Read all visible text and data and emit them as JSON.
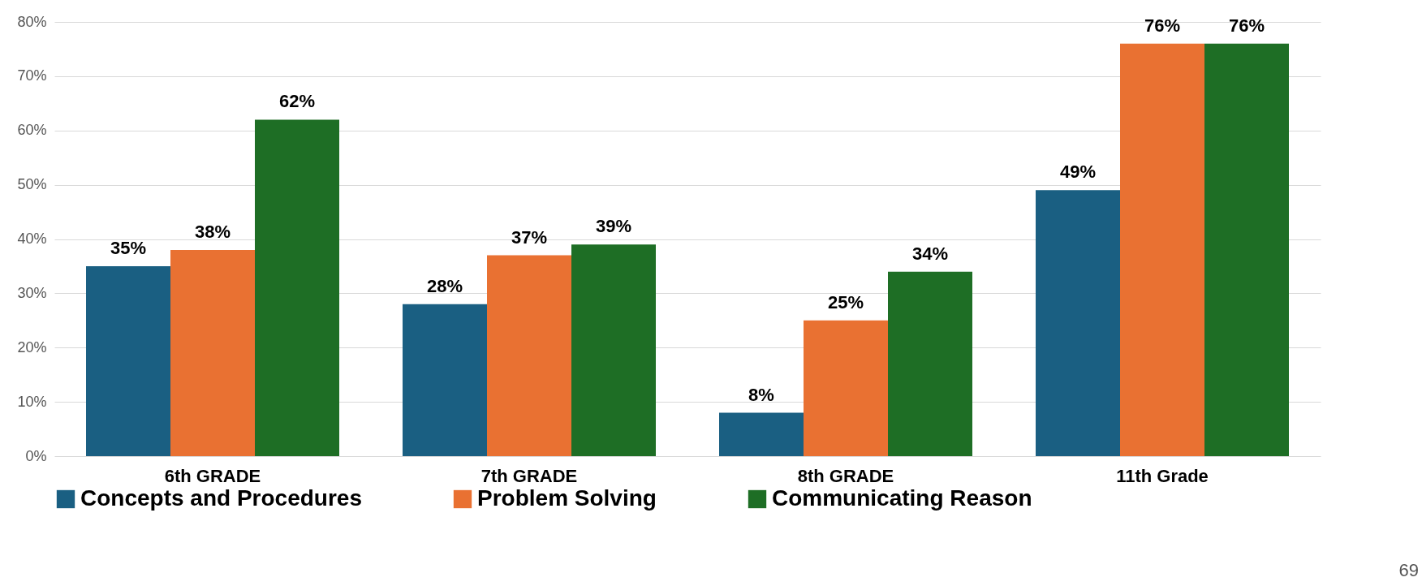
{
  "chart_data": {
    "type": "bar",
    "categories": [
      "6th GRADE",
      "7th GRADE",
      "8th GRADE",
      "11th Grade"
    ],
    "series": [
      {
        "name": "Concepts and Procedures",
        "color": "#1a5f82",
        "values": [
          35,
          28,
          8,
          49
        ],
        "value_labels": [
          "35%",
          "28%",
          "8%",
          "49%"
        ]
      },
      {
        "name": "Problem Solving",
        "color": "#e97132",
        "values": [
          38,
          37,
          25,
          76
        ],
        "value_labels": [
          "38%",
          "37%",
          "25%",
          "76%"
        ]
      },
      {
        "name": "Communicating Reason",
        "color": "#1e6e25",
        "values": [
          62,
          39,
          34,
          76
        ],
        "value_labels": [
          "62%",
          "39%",
          "34%",
          "76%"
        ]
      }
    ],
    "ylim": [
      0,
      80
    ],
    "yticks": [
      {
        "value": 0,
        "label": "0%"
      },
      {
        "value": 10,
        "label": "10%"
      },
      {
        "value": 20,
        "label": "20%"
      },
      {
        "value": 30,
        "label": "30%"
      },
      {
        "value": 40,
        "label": "40%"
      },
      {
        "value": 50,
        "label": "50%"
      },
      {
        "value": 60,
        "label": "60%"
      },
      {
        "value": 70,
        "label": "70%"
      },
      {
        "value": 80,
        "label": "80%"
      }
    ],
    "grid": "y",
    "legend": "bottom",
    "annotations": [
      "69"
    ]
  }
}
